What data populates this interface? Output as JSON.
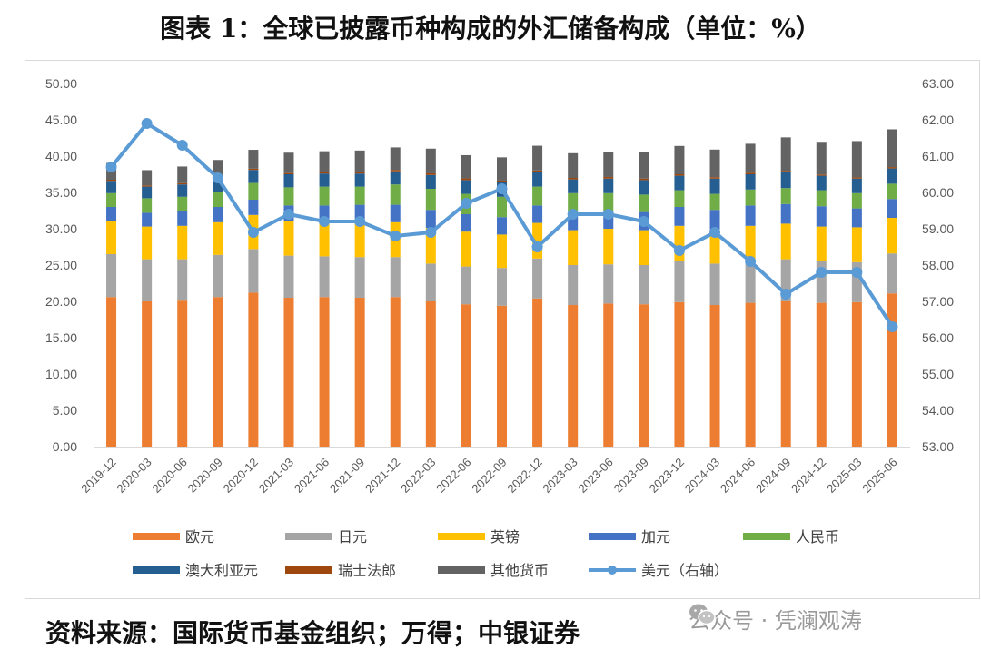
{
  "title": "图表 1：全球已披露币种构成的外汇储备构成（单位：%）",
  "source_note": "资料来源：国际货币基金组织；万得；中银证券",
  "watermark": "公众号 · 凭澜观涛",
  "colors": {
    "欧元": "#ED7D31",
    "日元": "#A5A5A5",
    "英镑": "#FFC000",
    "加元": "#4472C4",
    "人民币": "#70AD47",
    "澳大利亚元": "#255E91",
    "瑞士法郎": "#9E480E",
    "其他货币": "#636363",
    "美元（右轴）": "#5B9BD5"
  },
  "chart_data": {
    "type": "bar",
    "stacked": true,
    "categories": [
      "2019-12",
      "2020-03",
      "2020-06",
      "2020-09",
      "2020-12",
      "2021-03",
      "2021-06",
      "2021-09",
      "2021-12",
      "2022-03",
      "2022-06",
      "2022-09",
      "2022-12",
      "2023-03",
      "2023-06",
      "2023-09",
      "2023-12",
      "2024-03",
      "2024-06",
      "2024-09",
      "2024-12",
      "2025-03",
      "2025-06"
    ],
    "y_ticks": [
      "0.00",
      "5.00",
      "10.00",
      "15.00",
      "20.00",
      "25.00",
      "30.00",
      "35.00",
      "40.00",
      "45.00",
      "50.00"
    ],
    "y2_ticks": [
      "53.00",
      "54.00",
      "55.00",
      "56.00",
      "57.00",
      "58.00",
      "59.00",
      "60.00",
      "61.00",
      "62.00",
      "63.00"
    ],
    "ylim": [
      0,
      50
    ],
    "y2lim": [
      53,
      63
    ],
    "series": [
      {
        "name": "欧元",
        "axis": "left",
        "values": [
          20.6,
          20.0,
          20.1,
          20.6,
          21.2,
          20.5,
          20.6,
          20.5,
          20.6,
          20.0,
          19.6,
          19.4,
          20.4,
          19.5,
          19.7,
          19.6,
          19.9,
          19.5,
          19.8,
          20.0,
          19.8,
          19.9,
          21.1
        ]
      },
      {
        "name": "日元",
        "axis": "left",
        "values": [
          5.9,
          5.8,
          5.7,
          5.8,
          6.0,
          5.8,
          5.6,
          5.6,
          5.5,
          5.2,
          5.2,
          5.2,
          5.5,
          5.5,
          5.4,
          5.4,
          5.7,
          5.7,
          5.7,
          5.8,
          5.8,
          5.5,
          5.5
        ]
      },
      {
        "name": "英镑",
        "axis": "left",
        "values": [
          4.6,
          4.5,
          4.6,
          4.5,
          4.7,
          4.7,
          4.7,
          4.8,
          4.8,
          4.9,
          4.8,
          4.6,
          4.9,
          4.8,
          4.9,
          4.8,
          4.8,
          4.7,
          4.9,
          4.9,
          4.7,
          4.8,
          4.9
        ]
      },
      {
        "name": "加元",
        "axis": "left",
        "values": [
          1.9,
          1.9,
          2.0,
          2.1,
          2.1,
          2.2,
          2.3,
          2.4,
          2.4,
          2.5,
          2.4,
          2.4,
          2.4,
          2.5,
          2.5,
          2.5,
          2.6,
          2.7,
          2.8,
          2.7,
          2.8,
          2.6,
          2.6
        ]
      },
      {
        "name": "人民币",
        "axis": "left",
        "values": [
          1.9,
          2.0,
          2.0,
          2.1,
          2.3,
          2.5,
          2.6,
          2.5,
          2.8,
          2.9,
          2.8,
          2.8,
          2.6,
          2.6,
          2.4,
          2.4,
          2.3,
          2.2,
          2.2,
          2.2,
          2.2,
          2.1,
          2.1
        ]
      },
      {
        "name": "澳大利亚元",
        "axis": "left",
        "values": [
          1.7,
          1.6,
          1.7,
          1.8,
          1.8,
          1.8,
          1.8,
          1.8,
          1.8,
          1.9,
          1.9,
          2.0,
          2.0,
          1.9,
          2.0,
          2.0,
          2.0,
          2.1,
          2.1,
          2.2,
          2.0,
          2.0,
          2.1
        ]
      },
      {
        "name": "瑞士法郎",
        "axis": "left",
        "values": [
          0.15,
          0.17,
          0.17,
          0.17,
          0.17,
          0.17,
          0.17,
          0.17,
          0.2,
          0.23,
          0.23,
          0.23,
          0.23,
          0.2,
          0.23,
          0.2,
          0.2,
          0.2,
          0.2,
          0.18,
          0.17,
          0.17,
          0.19
        ]
      },
      {
        "name": "其他货币",
        "axis": "left",
        "values": [
          2.3,
          2.1,
          2.3,
          2.4,
          2.6,
          2.8,
          2.9,
          3.0,
          3.1,
          3.4,
          3.2,
          3.2,
          3.4,
          3.4,
          3.4,
          3.7,
          3.9,
          3.8,
          4.0,
          4.6,
          4.5,
          5.0,
          5.2
        ]
      },
      {
        "name": "美元（右轴）",
        "axis": "right",
        "type": "line",
        "values": [
          60.7,
          61.9,
          61.3,
          60.4,
          58.9,
          59.4,
          59.2,
          59.2,
          58.8,
          58.9,
          59.7,
          60.1,
          58.5,
          59.4,
          59.4,
          59.2,
          58.4,
          58.9,
          58.1,
          57.2,
          57.8,
          57.8,
          56.3
        ]
      }
    ],
    "legend_position": "bottom",
    "grid": false
  }
}
